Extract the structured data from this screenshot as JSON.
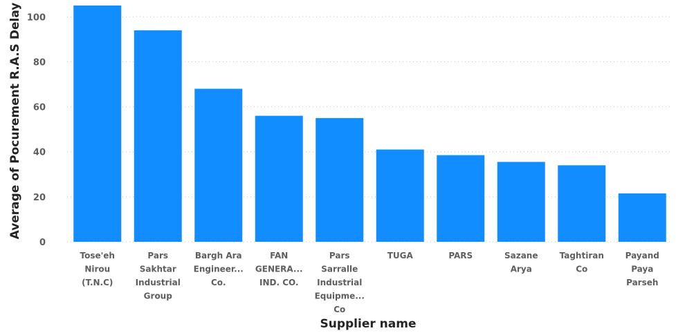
{
  "chart_data": {
    "type": "bar",
    "categories": [
      [
        "Tose'eh",
        "Nirou",
        "(T.N.C)"
      ],
      [
        "Pars",
        "Sakhtar",
        "Industrial",
        "Group"
      ],
      [
        "Bargh Ara",
        "Engineer...",
        "Co."
      ],
      [
        "FAN",
        "GENERA...",
        "IND. CO."
      ],
      [
        "Pars",
        "Sarralle",
        "Industrial",
        "Equipme...",
        "Co"
      ],
      [
        "TUGA"
      ],
      [
        "PARS"
      ],
      [
        "Sazane",
        "Arya"
      ],
      [
        "Taghtiran",
        "Co"
      ],
      [
        "Payand",
        "Paya",
        "Parseh"
      ]
    ],
    "values": [
      105,
      94,
      68,
      56,
      55,
      41,
      38.5,
      35.5,
      34,
      21.5
    ],
    "ylim": [
      0,
      105
    ],
    "yticks": [
      0,
      20,
      40,
      60,
      80,
      100
    ],
    "xlabel": "Supplier name",
    "ylabel": "Average of Pocurement R.A.S Delay",
    "grid": true,
    "bar_color": "#118DFF"
  }
}
